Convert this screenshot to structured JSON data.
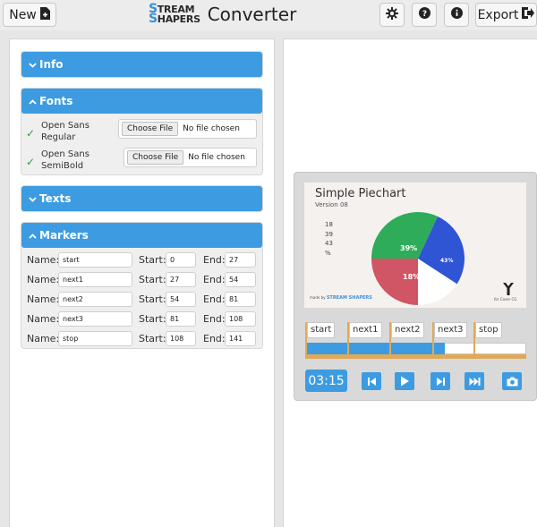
{
  "topbar": {
    "new_label": "New",
    "export_label": "Export",
    "logo": {
      "line1": "TREAM",
      "line1_initial": "S",
      "line2": "HAPERS",
      "line2_initial": "S"
    },
    "app_title": "Converter",
    "icons": [
      "new-file-icon",
      "settings-icon",
      "help-icon",
      "info-icon",
      "export-icon"
    ]
  },
  "left": {
    "info": {
      "label": "Info",
      "chevron": "chevron-down-icon"
    },
    "fonts": {
      "label": "Fonts",
      "chevron": "chevron-up-icon",
      "rows": [
        {
          "line1": "Open Sans",
          "line2": "Regular",
          "checked": true,
          "button": "Choose File",
          "status": "No file chosen"
        },
        {
          "line1": "Open Sans",
          "line2": "SemiBold",
          "checked": true,
          "button": "Choose File",
          "status": "No file chosen"
        }
      ]
    },
    "texts": {
      "label": "Texts",
      "chevron": "chevron-down-icon"
    },
    "markers": {
      "label": "Markers",
      "chevron": "chevron-up-icon",
      "name_label": "Name:",
      "start_label": "Start:",
      "end_label": "End:",
      "rows": [
        {
          "name": "start",
          "start": "0",
          "end": "27"
        },
        {
          "name": "next1",
          "start": "27",
          "end": "54"
        },
        {
          "name": "next2",
          "start": "54",
          "end": "81"
        },
        {
          "name": "next3",
          "start": "81",
          "end": "108"
        },
        {
          "name": "stop",
          "start": "108",
          "end": "141"
        }
      ]
    }
  },
  "preview": {
    "title": "Simple Piechart",
    "version": "Version 08",
    "numbers": [
      "18",
      "39",
      "43",
      "%"
    ],
    "slice_labels": {
      "green": "39%",
      "blue": "43%",
      "red": "18%"
    },
    "made_by_prefix": "made by",
    "made_by_brand": "STREAM SHAPERS",
    "brand_sub": "for Coser CG",
    "colors": {
      "green": "#2fac5a",
      "blue": "#2f55d4",
      "red": "#d05565",
      "white": "#ffffff"
    },
    "chart_data": {
      "type": "pie",
      "categories": [
        "18%",
        "39%",
        "43%"
      ],
      "values": [
        18,
        39,
        43
      ]
    }
  },
  "timeline": {
    "markers": [
      "start",
      "next1",
      "next2",
      "next3",
      "stop"
    ],
    "progress": 0.63
  },
  "controls": {
    "time": "03:15",
    "buttons": [
      "skip-back-icon",
      "play-icon",
      "step-forward-icon",
      "fast-forward-icon",
      "camera-icon"
    ]
  }
}
